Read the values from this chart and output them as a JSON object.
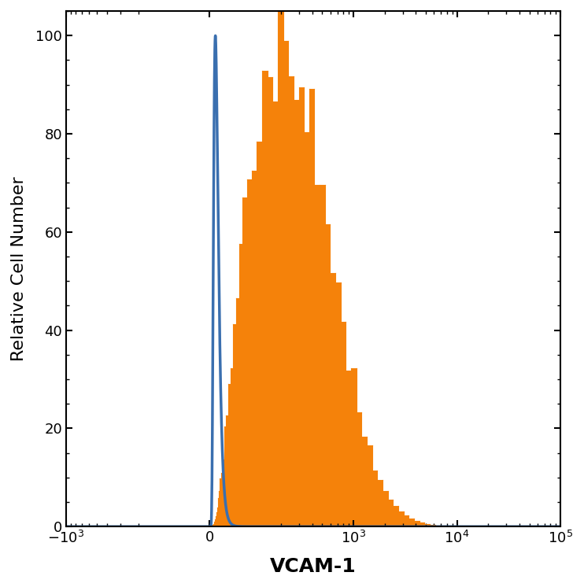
{
  "xlabel": "VCAM-1",
  "ylabel": "Relative Cell Number",
  "ylim": [
    0,
    105
  ],
  "yticks": [
    0,
    20,
    40,
    60,
    80,
    100
  ],
  "title": "",
  "blue_color": "#3a6faf",
  "orange_color": "#f5820a",
  "orange_fill_alpha": 1.0,
  "blue_linewidth": 2.5,
  "orange_linewidth": 0.8,
  "background_color": "#ffffff",
  "tick_label_fontsize": 13,
  "axis_label_fontsize": 16,
  "xlabel_fontsize": 18,
  "xlabel_fontweight": "bold"
}
